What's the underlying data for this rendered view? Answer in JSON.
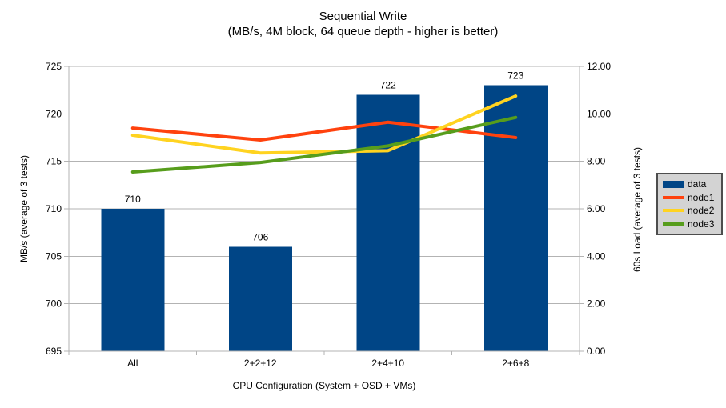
{
  "chart_data": {
    "type": "combo-bar-line",
    "title": "Sequential Write",
    "subtitle": "(MB/s, 4M block, 64 queue depth - higher is better)",
    "xlabel": "CPU Configuration (System + OSD + VMs)",
    "ylabel_left": "MB/s (average of 3 tests)",
    "ylabel_right": "60s Load (average of 3 tests)",
    "categories": [
      "All",
      "2+2+12",
      "2+4+10",
      "2+6+8"
    ],
    "left_axis": {
      "min": 695,
      "max": 725,
      "ticks": [
        695,
        700,
        705,
        710,
        715,
        720,
        725
      ],
      "decimals": 0
    },
    "right_axis": {
      "min": 0,
      "max": 12,
      "ticks": [
        0,
        2,
        4,
        6,
        8,
        10,
        12
      ],
      "decimals": 2
    },
    "bar_series": {
      "name": "data",
      "axis": "left",
      "color": "#004586",
      "values": [
        710,
        706,
        722,
        723
      ],
      "data_labels": [
        "710",
        "706",
        "722",
        "723"
      ]
    },
    "line_series": [
      {
        "name": "node1",
        "axis": "right",
        "color": "#ff420e",
        "values": [
          9.4,
          8.9,
          9.65,
          9.0
        ]
      },
      {
        "name": "node2",
        "axis": "right",
        "color": "#ffd320",
        "values": [
          9.1,
          8.35,
          8.45,
          10.75
        ]
      },
      {
        "name": "node3",
        "axis": "right",
        "color": "#579d1c",
        "values": [
          7.55,
          7.95,
          8.65,
          9.85
        ]
      }
    ],
    "grid_on": true,
    "grid_color": "#b3b3b3",
    "legend_position": "right",
    "legend_bg": "#d3d3d3",
    "legend_border": "#4d4d4d"
  }
}
